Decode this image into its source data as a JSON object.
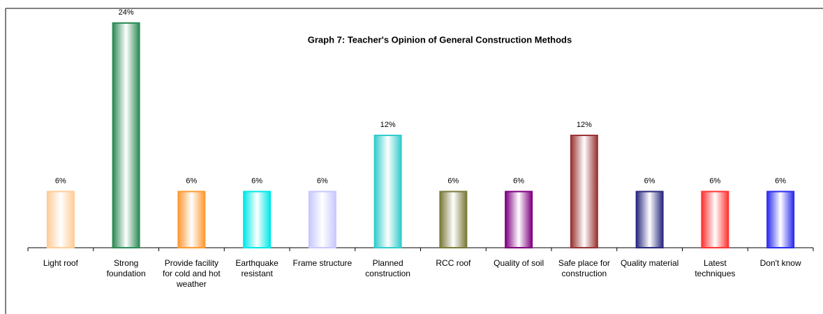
{
  "chart_data": {
    "type": "bar",
    "title": "Graph 7: Teacher's Opinion of General Construction Methods",
    "categories": [
      "Light roof",
      "Strong foundation",
      "Provide facility for cold and hot weather",
      "Earthquake resistant",
      "Frame structure",
      "Planned construction",
      "RCC roof",
      "Quality of soil",
      "Safe place for construction",
      "Quality material",
      "Latest techniques",
      "Don't know"
    ],
    "values": [
      6,
      24,
      6,
      6,
      6,
      12,
      6,
      6,
      12,
      6,
      6,
      6
    ],
    "value_labels": [
      "6%",
      "24%",
      "6%",
      "6%",
      "6%",
      "12%",
      "6%",
      "6%",
      "12%",
      "6%",
      "6%",
      "6%"
    ],
    "colors": [
      "#ffcc99",
      "#2e8b57",
      "#ff9933",
      "#00e8e8",
      "#c8c8ff",
      "#33cccc",
      "#7a7a3a",
      "#800080",
      "#993333",
      "#2a2a80",
      "#ff3333",
      "#2d2df0"
    ]
  }
}
